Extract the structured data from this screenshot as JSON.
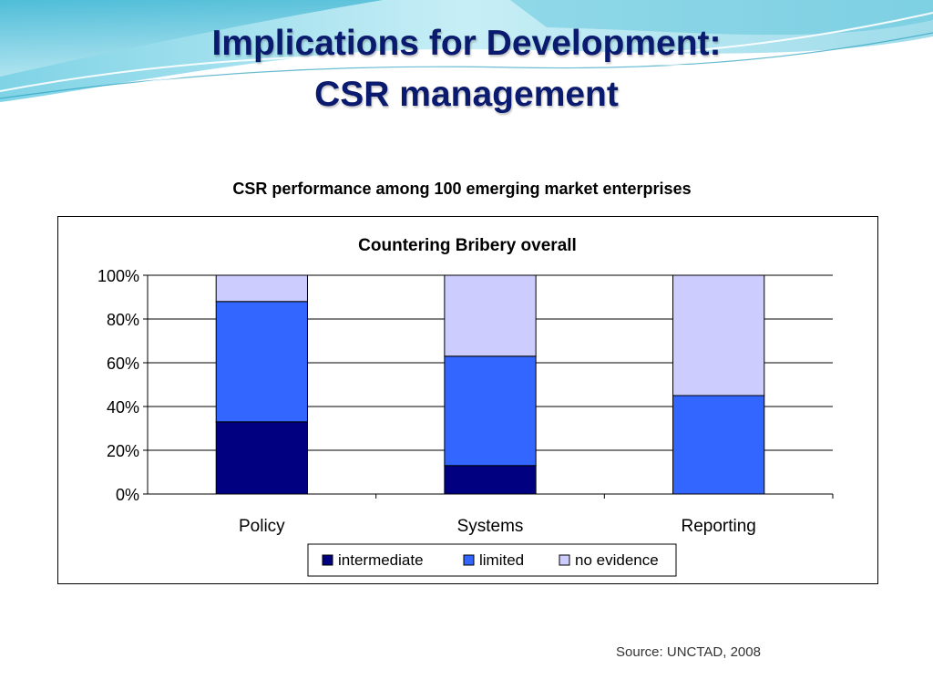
{
  "slide": {
    "title_line1": "Implications for Development:",
    "title_line2": "CSR management",
    "chart_heading": "CSR performance among 100 emerging market enterprises",
    "source": "Source: UNCTAD, 2008"
  },
  "chart_data": {
    "type": "bar",
    "stacked": true,
    "title": "Countering Bribery overall",
    "categories": [
      "Policy",
      "Systems",
      "Reporting"
    ],
    "series": [
      {
        "name": "intermediate",
        "values": [
          33,
          13,
          0
        ],
        "color": "#000080"
      },
      {
        "name": "limited",
        "values": [
          55,
          50,
          45
        ],
        "color": "#3366ff"
      },
      {
        "name": "no evidence",
        "values": [
          12,
          37,
          55
        ],
        "color": "#ccccff"
      }
    ],
    "yticks": [
      "0%",
      "20%",
      "40%",
      "60%",
      "80%",
      "100%"
    ],
    "ylim": [
      0,
      100
    ],
    "xlabel": "",
    "ylabel": "",
    "grid": true,
    "legend": "bottom"
  }
}
